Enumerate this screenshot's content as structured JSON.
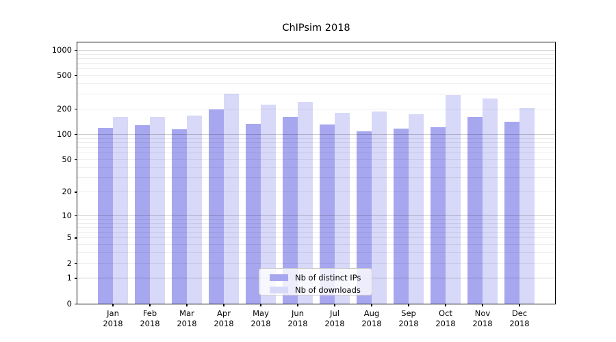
{
  "chart_data": {
    "type": "bar",
    "title": "ChIPsim 2018",
    "categories": [
      "Jan",
      "Feb",
      "Mar",
      "Apr",
      "May",
      "Jun",
      "Jul",
      "Aug",
      "Sep",
      "Oct",
      "Nov",
      "Dec"
    ],
    "year_label": "2018",
    "series": [
      {
        "name": "Nb of distinct IPs",
        "color": "#a7a7f0",
        "values": [
          120,
          130,
          115,
          200,
          135,
          162,
          132,
          109,
          117,
          122,
          162,
          142
        ]
      },
      {
        "name": "Nb of downloads",
        "color": "#d8d8f9",
        "values": [
          161,
          161,
          168,
          305,
          225,
          245,
          181,
          189,
          174,
          292,
          268,
          206
        ]
      }
    ],
    "y_axis": {
      "scale": "log10(value+1)",
      "ticks": [
        1000,
        500,
        200,
        100,
        50,
        20,
        10,
        5,
        2,
        1,
        0
      ],
      "top_value": 1160
    },
    "grid": "horizontal, major and minor, drawn over bars",
    "legend": {
      "position": "lower-center"
    }
  }
}
